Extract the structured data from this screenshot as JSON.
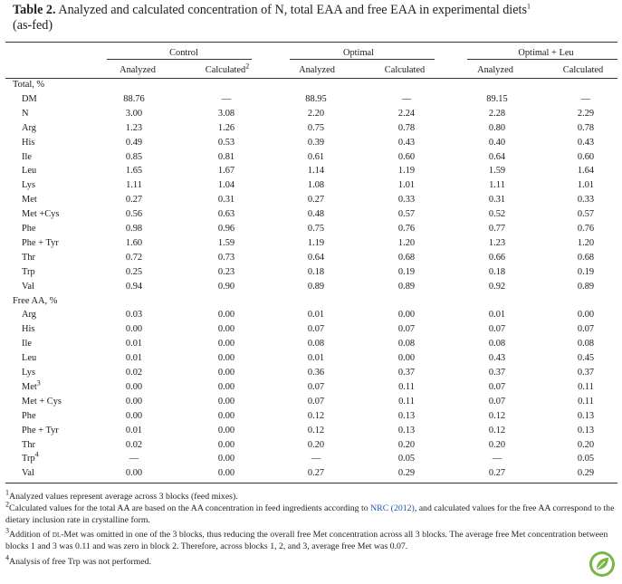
{
  "title": {
    "label": "Table 2.",
    "text": "Analyzed and calculated concentration of N, total EAA and free EAA in experimental diets",
    "sup": "1",
    "tail": "(as-fed)"
  },
  "groups": [
    "Control",
    "Optimal",
    "Optimal + Leu"
  ],
  "subheaders": [
    "Analyzed",
    "Calculated",
    "Analyzed",
    "Calculated",
    "Analyzed",
    "Calculated"
  ],
  "subheader_sup": "2",
  "sections": [
    {
      "label": "Total, %",
      "rows": [
        {
          "name": "DM",
          "sup": "",
          "values": [
            "88.76",
            "—",
            "88.95",
            "—",
            "89.15",
            "—"
          ]
        },
        {
          "name": "N",
          "sup": "",
          "values": [
            "3.00",
            "3.08",
            "2.20",
            "2.24",
            "2.28",
            "2.29"
          ]
        },
        {
          "name": "Arg",
          "sup": "",
          "values": [
            "1.23",
            "1.26",
            "0.75",
            "0.78",
            "0.80",
            "0.78"
          ]
        },
        {
          "name": "His",
          "sup": "",
          "values": [
            "0.49",
            "0.53",
            "0.39",
            "0.43",
            "0.40",
            "0.43"
          ]
        },
        {
          "name": "Ile",
          "sup": "",
          "values": [
            "0.85",
            "0.81",
            "0.61",
            "0.60",
            "0.64",
            "0.60"
          ]
        },
        {
          "name": "Leu",
          "sup": "",
          "values": [
            "1.65",
            "1.67",
            "1.14",
            "1.19",
            "1.59",
            "1.64"
          ]
        },
        {
          "name": "Lys",
          "sup": "",
          "values": [
            "1.11",
            "1.04",
            "1.08",
            "1.01",
            "1.11",
            "1.01"
          ]
        },
        {
          "name": "Met",
          "sup": "",
          "values": [
            "0.27",
            "0.31",
            "0.27",
            "0.33",
            "0.31",
            "0.33"
          ]
        },
        {
          "name": "Met +Cys",
          "sup": "",
          "values": [
            "0.56",
            "0.63",
            "0.48",
            "0.57",
            "0.52",
            "0.57"
          ]
        },
        {
          "name": "Phe",
          "sup": "",
          "values": [
            "0.98",
            "0.96",
            "0.75",
            "0.76",
            "0.77",
            "0.76"
          ]
        },
        {
          "name": "Phe + Tyr",
          "sup": "",
          "values": [
            "1.60",
            "1.59",
            "1.19",
            "1.20",
            "1.23",
            "1.20"
          ]
        },
        {
          "name": "Thr",
          "sup": "",
          "values": [
            "0.72",
            "0.73",
            "0.64",
            "0.68",
            "0.66",
            "0.68"
          ]
        },
        {
          "name": "Trp",
          "sup": "",
          "values": [
            "0.25",
            "0.23",
            "0.18",
            "0.19",
            "0.18",
            "0.19"
          ]
        },
        {
          "name": "Val",
          "sup": "",
          "values": [
            "0.94",
            "0.90",
            "0.89",
            "0.89",
            "0.92",
            "0.89"
          ]
        }
      ]
    },
    {
      "label": "Free AA, %",
      "rows": [
        {
          "name": "Arg",
          "sup": "",
          "values": [
            "0.03",
            "0.00",
            "0.01",
            "0.00",
            "0.01",
            "0.00"
          ]
        },
        {
          "name": "His",
          "sup": "",
          "values": [
            "0.00",
            "0.00",
            "0.07",
            "0.07",
            "0.07",
            "0.07"
          ]
        },
        {
          "name": "Ile",
          "sup": "",
          "values": [
            "0.01",
            "0.00",
            "0.08",
            "0.08",
            "0.08",
            "0.08"
          ]
        },
        {
          "name": "Leu",
          "sup": "",
          "values": [
            "0.01",
            "0.00",
            "0.01",
            "0.00",
            "0.43",
            "0.45"
          ]
        },
        {
          "name": "Lys",
          "sup": "",
          "values": [
            "0.02",
            "0.00",
            "0.36",
            "0.37",
            "0.37",
            "0.37"
          ]
        },
        {
          "name": "Met",
          "sup": "3",
          "values": [
            "0.00",
            "0.00",
            "0.07",
            "0.11",
            "0.07",
            "0.11"
          ]
        },
        {
          "name": "Met + Cys",
          "sup": "",
          "values": [
            "0.00",
            "0.00",
            "0.07",
            "0.11",
            "0.07",
            "0.11"
          ]
        },
        {
          "name": "Phe",
          "sup": "",
          "values": [
            "0.00",
            "0.00",
            "0.12",
            "0.13",
            "0.12",
            "0.13"
          ]
        },
        {
          "name": "Phe + Tyr",
          "sup": "",
          "values": [
            "0.01",
            "0.00",
            "0.12",
            "0.13",
            "0.12",
            "0.13"
          ]
        },
        {
          "name": "Thr",
          "sup": "",
          "values": [
            "0.02",
            "0.00",
            "0.20",
            "0.20",
            "0.20",
            "0.20"
          ]
        },
        {
          "name": "Trp",
          "sup": "4",
          "values": [
            "—",
            "0.00",
            "—",
            "0.05",
            "—",
            "0.05"
          ]
        },
        {
          "name": "Val",
          "sup": "",
          "values": [
            "0.00",
            "0.00",
            "0.27",
            "0.29",
            "0.27",
            "0.29"
          ]
        }
      ]
    }
  ],
  "footnotes": [
    {
      "sup": "1",
      "text": "Analyzed values represent average across 3 blocks (feed mixes)."
    },
    {
      "sup": "2",
      "text_before": "Calculated values for the total AA are based on the AA concentration in feed ingredients according to ",
      "link": "NRC (2012)",
      "text_after": ", and calculated values for the free AA correspond to the dietary inclusion rate in crystalline form."
    },
    {
      "sup": "3",
      "text_before": "Addition of ",
      "smallcaps": "dl",
      "text_after": "-Met was omitted in one of the 3 blocks, thus reducing the overall free Met concentration across all 3 blocks. The average free Met concentration between blocks 1 and 3 was 0.11 and was zero in block 2. Therefore, across blocks 1, 2, and 3, average free Met was 0.07."
    },
    {
      "sup": "4",
      "text": "Analysis of free Trp was not performed."
    }
  ],
  "colors": {
    "rule": "#333333",
    "link": "#2355a8",
    "logo": "#7ab547"
  },
  "icons": {
    "logo": "leaf-logo-icon"
  }
}
